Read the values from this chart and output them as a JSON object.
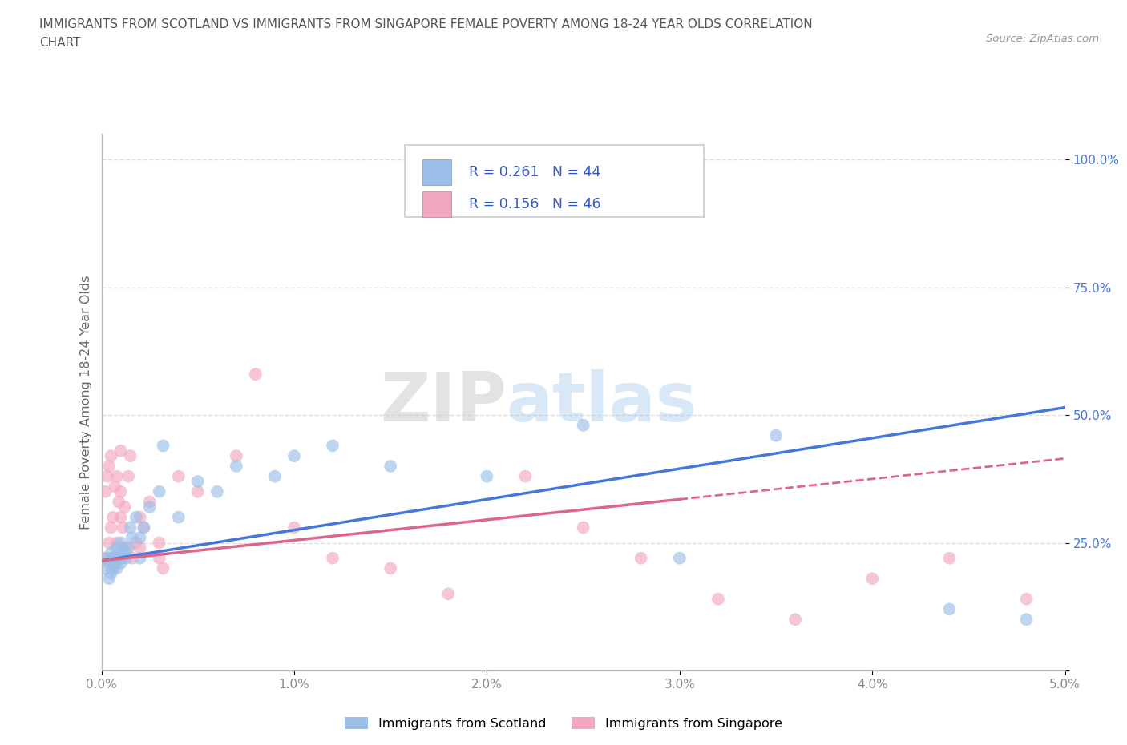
{
  "title_line1": "IMMIGRANTS FROM SCOTLAND VS IMMIGRANTS FROM SINGAPORE FEMALE POVERTY AMONG 18-24 YEAR OLDS CORRELATION",
  "title_line2": "CHART",
  "source_text": "Source: ZipAtlas.com",
  "ylabel": "Female Poverty Among 18-24 Year Olds",
  "xlim": [
    0.0,
    0.05
  ],
  "ylim": [
    0.0,
    1.05
  ],
  "xticks": [
    0.0,
    0.01,
    0.02,
    0.03,
    0.04,
    0.05
  ],
  "xticklabels": [
    "0.0%",
    "1.0%",
    "2.0%",
    "3.0%",
    "4.0%",
    "5.0%"
  ],
  "yticks": [
    0.0,
    0.25,
    0.5,
    0.75,
    1.0
  ],
  "yticklabels": [
    "",
    "25.0%",
    "50.0%",
    "75.0%",
    "100.0%"
  ],
  "scotland_color": "#9BBFE8",
  "singapore_color": "#F4A8C0",
  "scotland_R": "0.261",
  "scotland_N": "44",
  "singapore_R": "0.156",
  "singapore_N": "46",
  "legend_label_scotland": "Immigrants from Scotland",
  "legend_label_singapore": "Immigrants from Singapore",
  "watermark_zip": "ZIP",
  "watermark_atlas": "atlas",
  "title_color": "#555555",
  "axis_color": "#bbbbbb",
  "grid_color": "#dddddd",
  "tick_color": "#888888",
  "legend_color": "#3355CC",
  "trend_scotland_color": "#4477DD",
  "trend_singapore_color": "#DD6688",
  "scotland_x": [
    0.0002,
    0.0003,
    0.0004,
    0.0004,
    0.0005,
    0.0005,
    0.0006,
    0.0006,
    0.0007,
    0.0007,
    0.0008,
    0.0008,
    0.0009,
    0.001,
    0.001,
    0.001,
    0.0011,
    0.0011,
    0.0012,
    0.0013,
    0.0014,
    0.0015,
    0.0016,
    0.0018,
    0.002,
    0.002,
    0.0022,
    0.0025,
    0.003,
    0.0032,
    0.004,
    0.005,
    0.006,
    0.007,
    0.009,
    0.01,
    0.012,
    0.015,
    0.02,
    0.025,
    0.03,
    0.035,
    0.044,
    0.048
  ],
  "scotland_y": [
    0.2,
    0.22,
    0.18,
    0.21,
    0.23,
    0.19,
    0.2,
    0.22,
    0.21,
    0.22,
    0.24,
    0.2,
    0.22,
    0.25,
    0.21,
    0.23,
    0.22,
    0.24,
    0.23,
    0.22,
    0.24,
    0.28,
    0.26,
    0.3,
    0.26,
    0.22,
    0.28,
    0.32,
    0.35,
    0.44,
    0.3,
    0.37,
    0.35,
    0.4,
    0.38,
    0.42,
    0.44,
    0.4,
    0.38,
    0.48,
    0.22,
    0.46,
    0.12,
    0.1
  ],
  "singapore_x": [
    0.0001,
    0.0002,
    0.0003,
    0.0004,
    0.0004,
    0.0005,
    0.0005,
    0.0006,
    0.0007,
    0.0007,
    0.0008,
    0.0008,
    0.0009,
    0.001,
    0.001,
    0.001,
    0.0011,
    0.0012,
    0.0013,
    0.0014,
    0.0015,
    0.0016,
    0.0018,
    0.002,
    0.002,
    0.0022,
    0.0025,
    0.003,
    0.003,
    0.0032,
    0.004,
    0.005,
    0.007,
    0.008,
    0.01,
    0.012,
    0.015,
    0.018,
    0.022,
    0.025,
    0.028,
    0.032,
    0.036,
    0.04,
    0.044,
    0.048
  ],
  "singapore_y": [
    0.22,
    0.35,
    0.38,
    0.4,
    0.25,
    0.42,
    0.28,
    0.3,
    0.36,
    0.22,
    0.38,
    0.25,
    0.33,
    0.43,
    0.35,
    0.3,
    0.28,
    0.32,
    0.24,
    0.38,
    0.42,
    0.22,
    0.25,
    0.3,
    0.24,
    0.28,
    0.33,
    0.25,
    0.22,
    0.2,
    0.38,
    0.35,
    0.42,
    0.58,
    0.28,
    0.22,
    0.2,
    0.15,
    0.38,
    0.28,
    0.22,
    0.14,
    0.1,
    0.18,
    0.22,
    0.14
  ],
  "trend_scot_x0": 0.0,
  "trend_scot_x1": 0.05,
  "trend_scot_y0": 0.215,
  "trend_scot_y1": 0.515,
  "trend_sing_x0": 0.0,
  "trend_sing_x1": 0.05,
  "trend_sing_y0": 0.215,
  "trend_sing_y1": 0.415,
  "trend_sing_solid_x1": 0.03
}
